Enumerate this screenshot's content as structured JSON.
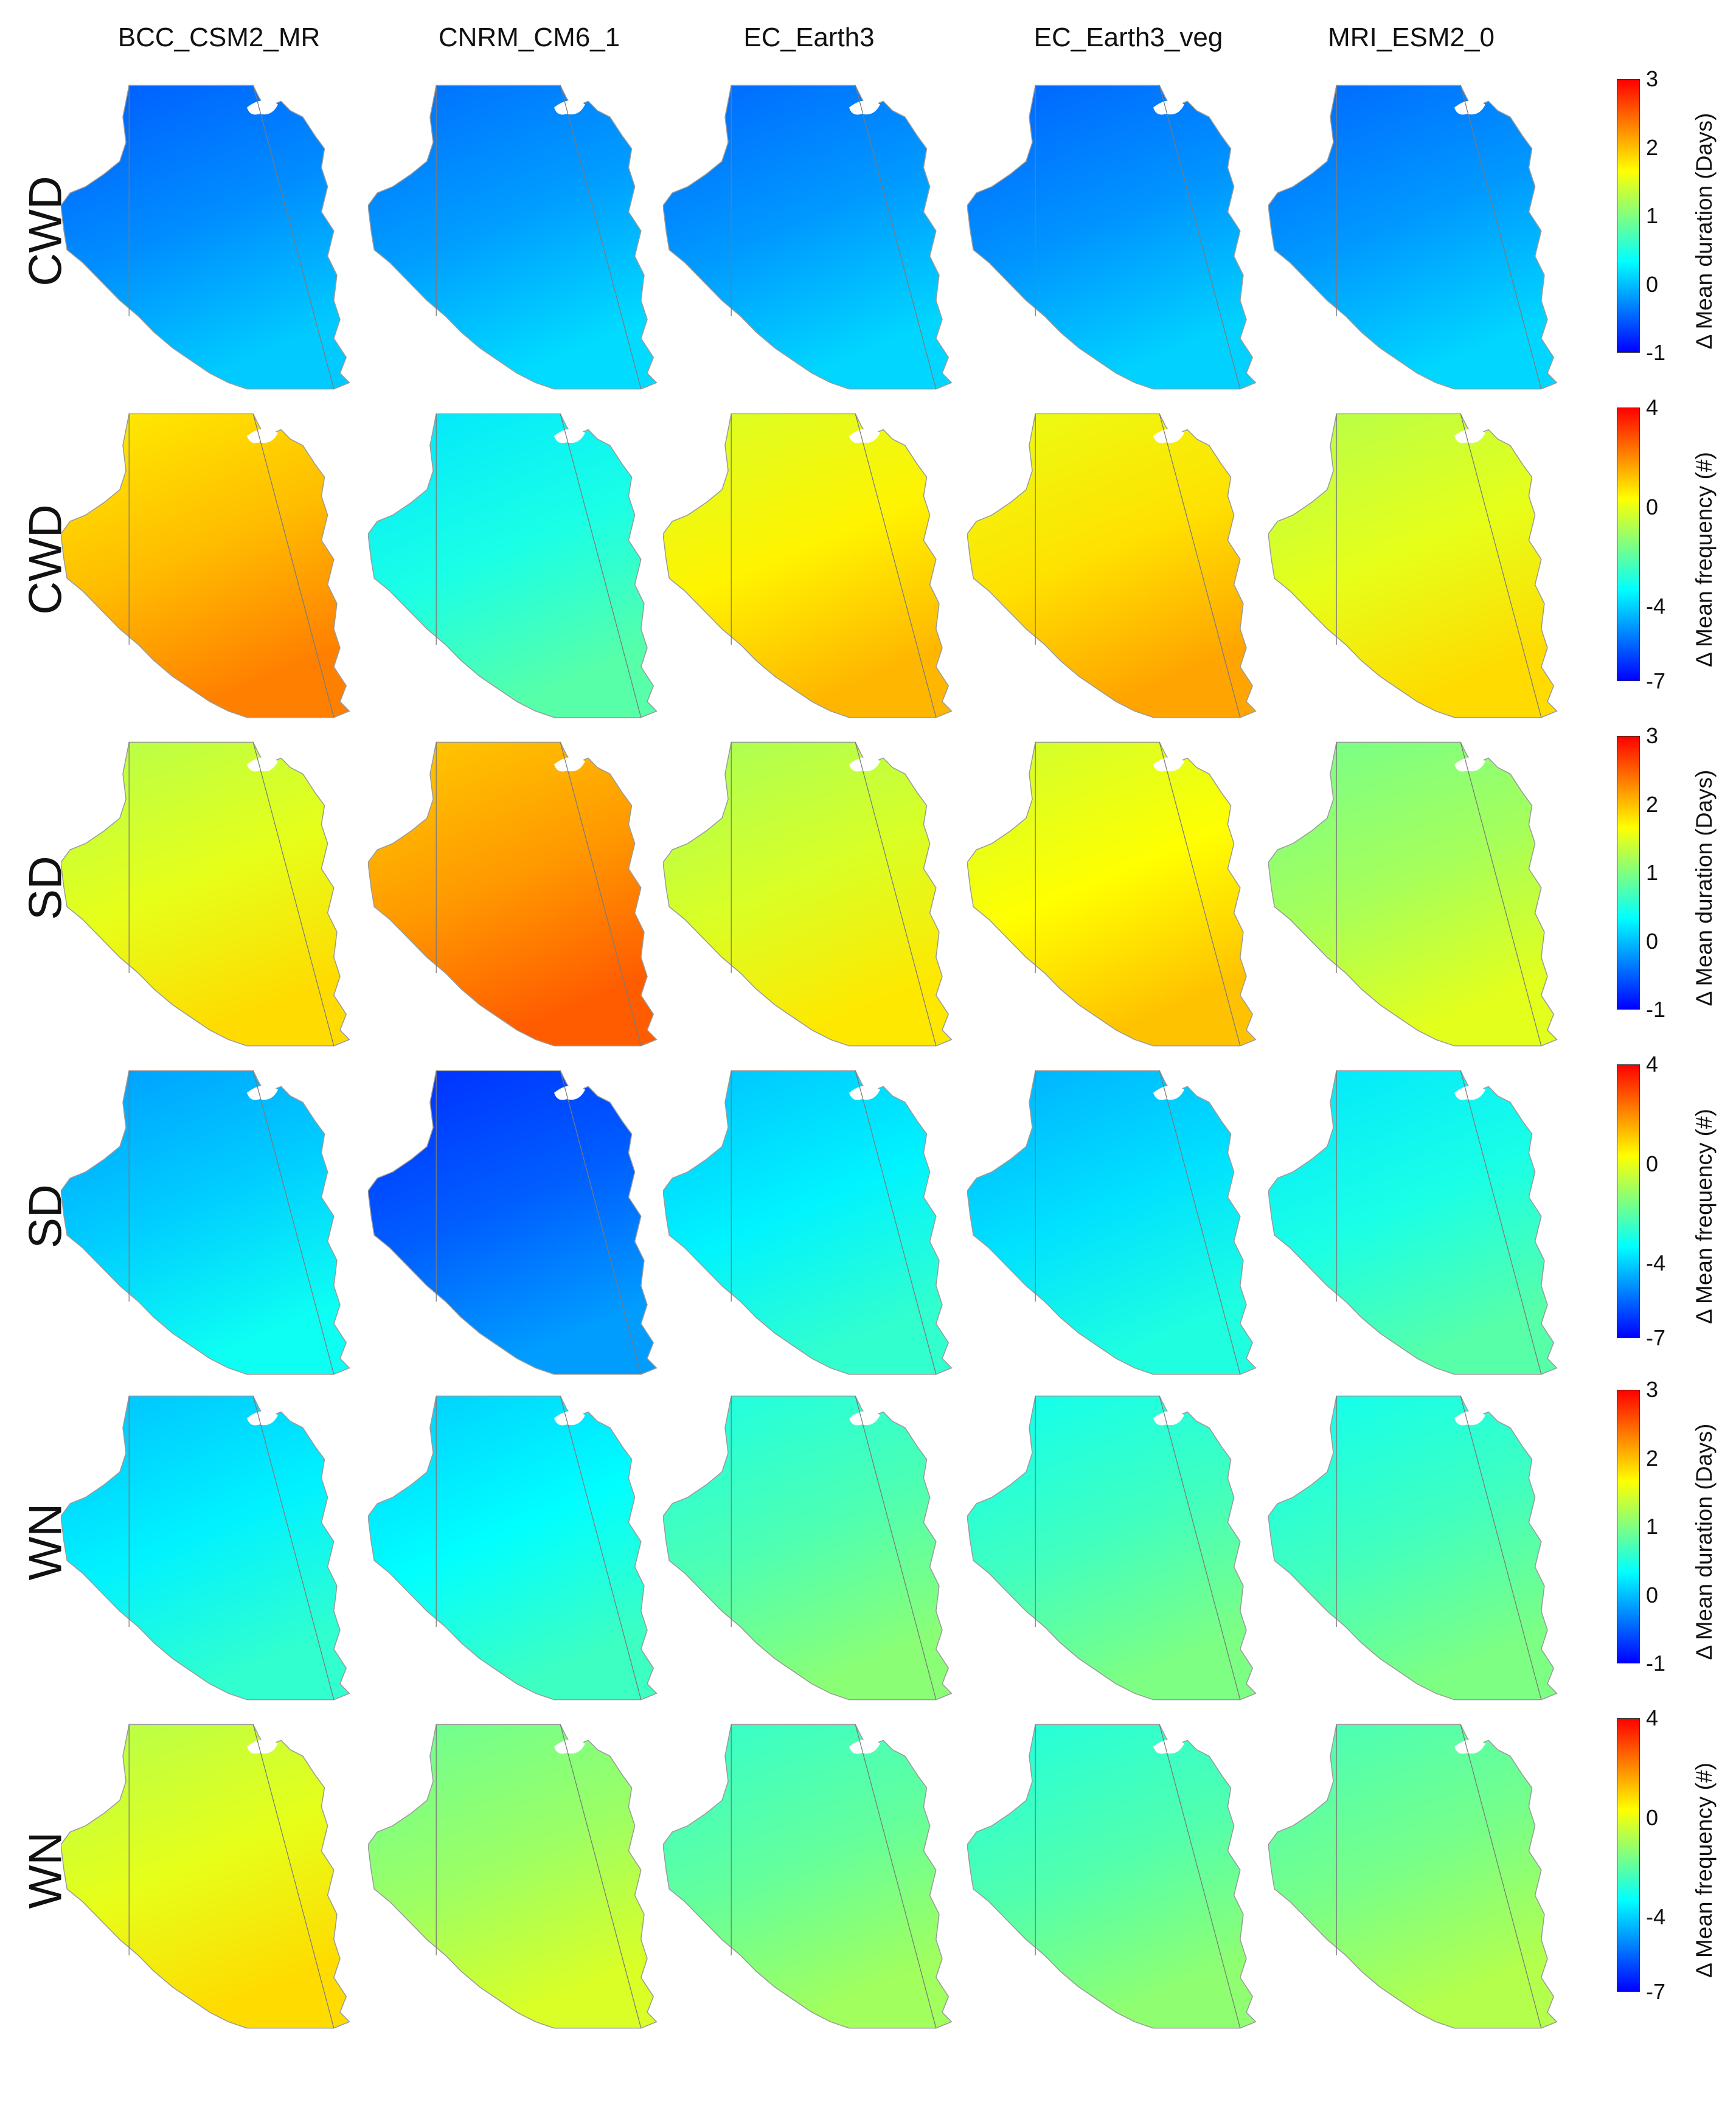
{
  "models": [
    "BCC_CSM2_MR",
    "CNRM_CM6_1",
    "EC_Earth3",
    "EC_Earth3_veg",
    "MRI_ESM2_0"
  ],
  "rows": [
    {
      "label": "CWD",
      "colorbar": {
        "title": "Δ Mean duration (Days)",
        "ticks": [
          "3",
          "2",
          "1",
          "0",
          "-1"
        ],
        "range": [
          -1,
          3
        ]
      },
      "values": [
        0.05,
        0.12,
        0.1,
        0.08,
        0.1
      ]
    },
    {
      "label": "CWD",
      "colorbar": {
        "title": "Δ Mean frequency (#)",
        "ticks": [
          "4",
          "0",
          "-4",
          "-7"
        ],
        "range": [
          -7,
          4
        ]
      },
      "values": [
        0.6,
        -2.6,
        0.0,
        0.2,
        -0.4
      ]
    },
    {
      "label": "SD",
      "colorbar": {
        "title": "Δ Mean duration (Days)",
        "ticks": [
          "3",
          "2",
          "1",
          "0",
          "-1"
        ],
        "range": [
          -1,
          3
        ]
      },
      "values": [
        1.4,
        1.9,
        1.35,
        1.5,
        1.15
      ]
    },
    {
      "label": "SD",
      "colorbar": {
        "title": "Δ Mean frequency (#)",
        "ticks": [
          "4",
          "0",
          "-4",
          "-7"
        ],
        "range": [
          -7,
          4
        ]
      },
      "values": [
        -3.4,
        -4.6,
        -3.0,
        -3.2,
        -2.6
      ]
    },
    {
      "label": "WN",
      "colorbar": {
        "title": "Δ Mean duration (Days)",
        "ticks": [
          "3",
          "2",
          "1",
          "0",
          "-1"
        ],
        "range": [
          -1,
          3
        ]
      },
      "values": [
        0.45,
        0.5,
        0.8,
        0.75,
        0.75
      ]
    },
    {
      "label": "WN",
      "colorbar": {
        "title": "Δ Mean frequency (#)",
        "ticks": [
          "4",
          "0",
          "-4",
          "-7"
        ],
        "range": [
          -7,
          4
        ]
      },
      "values": [
        -0.4,
        -1.2,
        -1.8,
        -2.0,
        -1.6
      ]
    }
  ],
  "colors": {
    "jet": [
      "#00008f",
      "#0000ff",
      "#0080ff",
      "#00ffff",
      "#80ff80",
      "#ffff00",
      "#ff8000",
      "#ff0000",
      "#800000"
    ],
    "border": "#9a9a9a"
  }
}
